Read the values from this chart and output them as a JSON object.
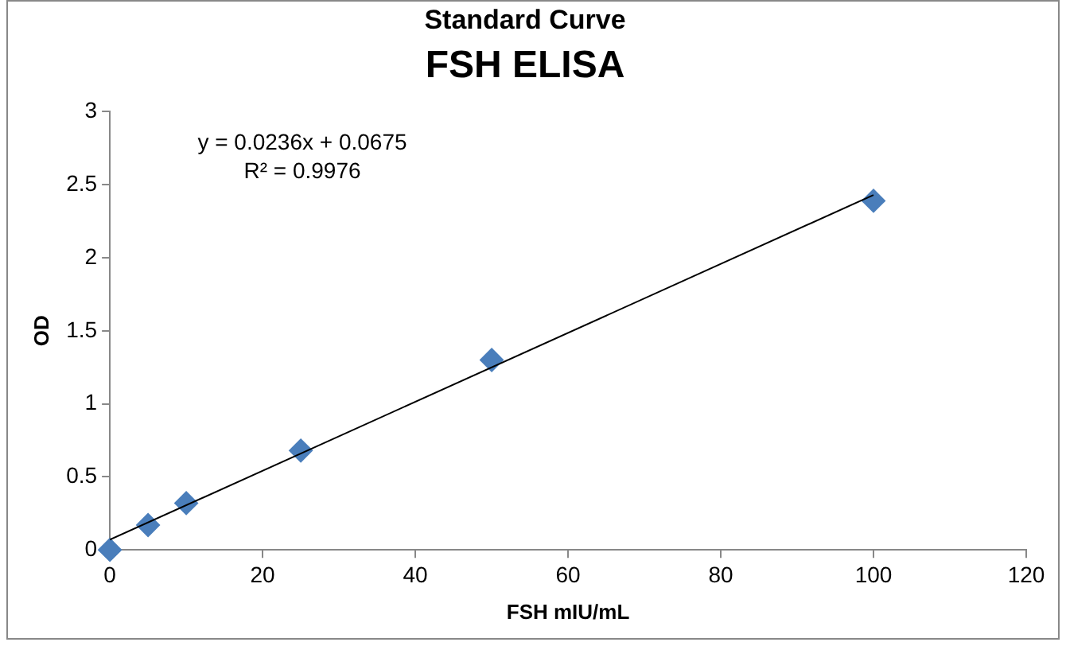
{
  "chart_data": {
    "type": "scatter",
    "title": "Standard Curve",
    "subtitle": "FSH ELISA",
    "xlabel": "FSH mIU/mL",
    "ylabel": "OD",
    "x": [
      0,
      5,
      10,
      25,
      50,
      100
    ],
    "series": [
      {
        "color": "#4a7ebb",
        "values": [
          0,
          0.17,
          0.32,
          0.68,
          1.3,
          2.39
        ]
      },
      {
        "type": "line",
        "marker": "none",
        "color": "#000000",
        "x": [
          0,
          100
        ],
        "values": [
          0.07,
          2.43
        ]
      }
    ],
    "annotations": [
      "y = 0.0236x + 0.0675",
      "R² = 0.9976"
    ],
    "xlim": [
      0,
      120
    ],
    "xticks": [
      0,
      20,
      40,
      60,
      80,
      100,
      120
    ],
    "ylim": [
      0,
      3
    ],
    "yticks": [
      0,
      0.5,
      1,
      1.5,
      2,
      2.5,
      3
    ],
    "grid": false,
    "legend": false,
    "marker": "diamond"
  }
}
